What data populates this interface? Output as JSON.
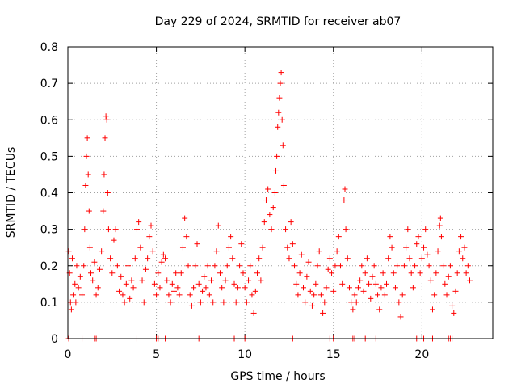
{
  "chart_data": {
    "type": "scatter",
    "title": "Day 229 of 2024, SRMTID for receiver ab07",
    "xlabel": "GPS time / hours",
    "ylabel": "SRMTID / TECUs",
    "xlim": [
      0,
      24
    ],
    "ylim": [
      0,
      0.8
    ],
    "xticks": [
      0,
      5,
      10,
      15,
      20
    ],
    "xtick_labels": [
      "0",
      "5",
      "10",
      "15",
      "20"
    ],
    "yticks": [
      0,
      0.1,
      0.2,
      0.3,
      0.4,
      0.5,
      0.6,
      0.7,
      0.8
    ],
    "ytick_labels": [
      "0",
      "0.1",
      "0.2",
      "0.3",
      "0.4",
      "0.5",
      "0.6",
      "0.7",
      "0.8"
    ],
    "grid": true,
    "marker": "plus",
    "series": [
      {
        "name": "ab07",
        "color": "#ff0000",
        "points": [
          [
            0.05,
            0.24
          ],
          [
            0.1,
            0.18
          ],
          [
            0.15,
            0.1
          ],
          [
            0.2,
            0.08
          ],
          [
            0.25,
            0.22
          ],
          [
            0.3,
            0.12
          ],
          [
            0.4,
            0.15
          ],
          [
            0.45,
            0.1
          ],
          [
            0.5,
            0.2
          ],
          [
            0.6,
            0.14
          ],
          [
            0.7,
            0.17
          ],
          [
            0.8,
            0.12
          ],
          [
            0.9,
            0.2
          ],
          [
            0.95,
            0.3
          ],
          [
            1.0,
            0.42
          ],
          [
            1.05,
            0.5
          ],
          [
            1.1,
            0.55
          ],
          [
            1.15,
            0.45
          ],
          [
            1.2,
            0.35
          ],
          [
            1.25,
            0.25
          ],
          [
            1.3,
            0.18
          ],
          [
            1.4,
            0.16
          ],
          [
            1.5,
            0.21
          ],
          [
            1.6,
            0.12
          ],
          [
            1.7,
            0.14
          ],
          [
            1.8,
            0.19
          ],
          [
            1.9,
            0.24
          ],
          [
            2.0,
            0.35
          ],
          [
            2.05,
            0.45
          ],
          [
            2.1,
            0.55
          ],
          [
            2.15,
            0.61
          ],
          [
            2.2,
            0.6
          ],
          [
            2.25,
            0.4
          ],
          [
            2.3,
            0.3
          ],
          [
            2.4,
            0.22
          ],
          [
            2.5,
            0.18
          ],
          [
            2.6,
            0.27
          ],
          [
            2.7,
            0.3
          ],
          [
            2.8,
            0.2
          ],
          [
            2.9,
            0.13
          ],
          [
            3.0,
            0.17
          ],
          [
            3.1,
            0.12
          ],
          [
            3.2,
            0.1
          ],
          [
            3.3,
            0.15
          ],
          [
            3.4,
            0.2
          ],
          [
            3.5,
            0.11
          ],
          [
            3.6,
            0.16
          ],
          [
            3.7,
            0.14
          ],
          [
            3.8,
            0.22
          ],
          [
            3.9,
            0.3
          ],
          [
            4.0,
            0.32
          ],
          [
            4.1,
            0.25
          ],
          [
            4.2,
            0.16
          ],
          [
            4.3,
            0.1
          ],
          [
            4.4,
            0.19
          ],
          [
            4.5,
            0.22
          ],
          [
            4.6,
            0.28
          ],
          [
            4.7,
            0.31
          ],
          [
            4.8,
            0.24
          ],
          [
            4.9,
            0.15
          ],
          [
            5.0,
            0.12
          ],
          [
            5.1,
            0.18
          ],
          [
            5.2,
            0.14
          ],
          [
            5.3,
            0.21
          ],
          [
            5.4,
            0.23
          ],
          [
            5.5,
            0.22
          ],
          [
            5.6,
            0.16
          ],
          [
            5.7,
            0.12
          ],
          [
            5.8,
            0.1
          ],
          [
            5.9,
            0.15
          ],
          [
            6.0,
            0.13
          ],
          [
            6.1,
            0.18
          ],
          [
            6.2,
            0.14
          ],
          [
            6.3,
            0.12
          ],
          [
            6.4,
            0.18
          ],
          [
            6.5,
            0.25
          ],
          [
            6.6,
            0.33
          ],
          [
            6.7,
            0.28
          ],
          [
            6.8,
            0.2
          ],
          [
            6.9,
            0.12
          ],
          [
            7.0,
            0.09
          ],
          [
            7.1,
            0.14
          ],
          [
            7.2,
            0.2
          ],
          [
            7.3,
            0.26
          ],
          [
            7.4,
            0.15
          ],
          [
            7.5,
            0.1
          ],
          [
            7.6,
            0.13
          ],
          [
            7.7,
            0.17
          ],
          [
            7.8,
            0.14
          ],
          [
            7.9,
            0.2
          ],
          [
            8.0,
            0.12
          ],
          [
            8.1,
            0.16
          ],
          [
            8.2,
            0.1
          ],
          [
            8.3,
            0.2
          ],
          [
            8.4,
            0.24
          ],
          [
            8.5,
            0.31
          ],
          [
            8.6,
            0.18
          ],
          [
            8.7,
            0.14
          ],
          [
            8.8,
            0.1
          ],
          [
            8.9,
            0.16
          ],
          [
            9.0,
            0.2
          ],
          [
            9.1,
            0.25
          ],
          [
            9.2,
            0.28
          ],
          [
            9.3,
            0.22
          ],
          [
            9.4,
            0.15
          ],
          [
            9.5,
            0.1
          ],
          [
            9.6,
            0.14
          ],
          [
            9.7,
            0.2
          ],
          [
            9.8,
            0.26
          ],
          [
            9.9,
            0.18
          ],
          [
            10.0,
            0.14
          ],
          [
            10.1,
            0.1
          ],
          [
            10.2,
            0.16
          ],
          [
            10.3,
            0.2
          ],
          [
            10.4,
            0.12
          ],
          [
            10.5,
            0.07
          ],
          [
            10.6,
            0.13
          ],
          [
            10.7,
            0.18
          ],
          [
            10.8,
            0.22
          ],
          [
            10.9,
            0.16
          ],
          [
            11.0,
            0.25
          ],
          [
            11.1,
            0.32
          ],
          [
            11.2,
            0.38
          ],
          [
            11.3,
            0.41
          ],
          [
            11.4,
            0.34
          ],
          [
            11.5,
            0.3
          ],
          [
            11.6,
            0.36
          ],
          [
            11.7,
            0.4
          ],
          [
            11.75,
            0.46
          ],
          [
            11.8,
            0.5
          ],
          [
            11.85,
            0.58
          ],
          [
            11.9,
            0.62
          ],
          [
            11.95,
            0.66
          ],
          [
            12.0,
            0.7
          ],
          [
            12.05,
            0.73
          ],
          [
            12.1,
            0.6
          ],
          [
            12.15,
            0.53
          ],
          [
            12.2,
            0.42
          ],
          [
            12.3,
            0.3
          ],
          [
            12.4,
            0.25
          ],
          [
            12.5,
            0.22
          ],
          [
            12.6,
            0.32
          ],
          [
            12.7,
            0.26
          ],
          [
            12.8,
            0.2
          ],
          [
            12.9,
            0.15
          ],
          [
            13.0,
            0.12
          ],
          [
            13.1,
            0.18
          ],
          [
            13.2,
            0.23
          ],
          [
            13.3,
            0.14
          ],
          [
            13.4,
            0.1
          ],
          [
            13.5,
            0.17
          ],
          [
            13.6,
            0.21
          ],
          [
            13.7,
            0.13
          ],
          [
            13.8,
            0.09
          ],
          [
            13.9,
            0.12
          ],
          [
            14.0,
            0.15
          ],
          [
            14.1,
            0.2
          ],
          [
            14.2,
            0.24
          ],
          [
            14.3,
            0.12
          ],
          [
            14.4,
            0.07
          ],
          [
            14.5,
            0.1
          ],
          [
            14.6,
            0.14
          ],
          [
            14.7,
            0.19
          ],
          [
            14.8,
            0.22
          ],
          [
            14.9,
            0.18
          ],
          [
            15.0,
            0.13
          ],
          [
            15.1,
            0.2
          ],
          [
            15.2,
            0.24
          ],
          [
            15.3,
            0.28
          ],
          [
            15.4,
            0.2
          ],
          [
            15.5,
            0.15
          ],
          [
            15.6,
            0.38
          ],
          [
            15.65,
            0.41
          ],
          [
            15.7,
            0.3
          ],
          [
            15.8,
            0.22
          ],
          [
            15.9,
            0.14
          ],
          [
            16.0,
            0.1
          ],
          [
            16.1,
            0.08
          ],
          [
            16.2,
            0.12
          ],
          [
            16.3,
            0.1
          ],
          [
            16.4,
            0.14
          ],
          [
            16.5,
            0.16
          ],
          [
            16.6,
            0.2
          ],
          [
            16.7,
            0.13
          ],
          [
            16.8,
            0.18
          ],
          [
            16.9,
            0.22
          ],
          [
            17.0,
            0.15
          ],
          [
            17.1,
            0.11
          ],
          [
            17.2,
            0.17
          ],
          [
            17.3,
            0.2
          ],
          [
            17.4,
            0.15
          ],
          [
            17.5,
            0.12
          ],
          [
            17.6,
            0.08
          ],
          [
            17.7,
            0.14
          ],
          [
            17.8,
            0.18
          ],
          [
            17.9,
            0.12
          ],
          [
            18.0,
            0.15
          ],
          [
            18.1,
            0.22
          ],
          [
            18.2,
            0.28
          ],
          [
            18.3,
            0.25
          ],
          [
            18.4,
            0.18
          ],
          [
            18.5,
            0.14
          ],
          [
            18.6,
            0.2
          ],
          [
            18.7,
            0.1
          ],
          [
            18.8,
            0.06
          ],
          [
            18.9,
            0.12
          ],
          [
            19.0,
            0.2
          ],
          [
            19.1,
            0.25
          ],
          [
            19.2,
            0.3
          ],
          [
            19.3,
            0.22
          ],
          [
            19.4,
            0.18
          ],
          [
            19.5,
            0.14
          ],
          [
            19.6,
            0.2
          ],
          [
            19.7,
            0.26
          ],
          [
            19.8,
            0.28
          ],
          [
            19.9,
            0.18
          ],
          [
            20.0,
            0.22
          ],
          [
            20.1,
            0.25
          ],
          [
            20.2,
            0.3
          ],
          [
            20.3,
            0.23
          ],
          [
            20.4,
            0.2
          ],
          [
            20.5,
            0.16
          ],
          [
            20.6,
            0.08
          ],
          [
            20.7,
            0.12
          ],
          [
            20.8,
            0.18
          ],
          [
            20.9,
            0.24
          ],
          [
            21.0,
            0.31
          ],
          [
            21.05,
            0.33
          ],
          [
            21.1,
            0.28
          ],
          [
            21.2,
            0.2
          ],
          [
            21.3,
            0.15
          ],
          [
            21.4,
            0.12
          ],
          [
            21.5,
            0.17
          ],
          [
            21.6,
            0.2
          ],
          [
            21.7,
            0.09
          ],
          [
            21.8,
            0.07
          ],
          [
            21.9,
            0.13
          ],
          [
            22.0,
            0.18
          ],
          [
            22.1,
            0.24
          ],
          [
            22.2,
            0.28
          ],
          [
            22.3,
            0.22
          ],
          [
            22.4,
            0.25
          ],
          [
            22.5,
            0.18
          ],
          [
            22.6,
            0.2
          ],
          [
            22.7,
            0.16
          ]
        ]
      }
    ],
    "zero_markers_x": [
      0.05,
      0.8,
      1.5,
      1.6,
      3.9,
      5.0,
      5.1,
      5.5,
      7.4,
      9.4,
      10.0,
      12.7,
      14.8,
      15.0,
      16.1,
      16.2,
      16.8,
      17.4,
      19.7,
      20.1,
      20.6,
      21.5,
      21.6,
      21.7
    ]
  }
}
